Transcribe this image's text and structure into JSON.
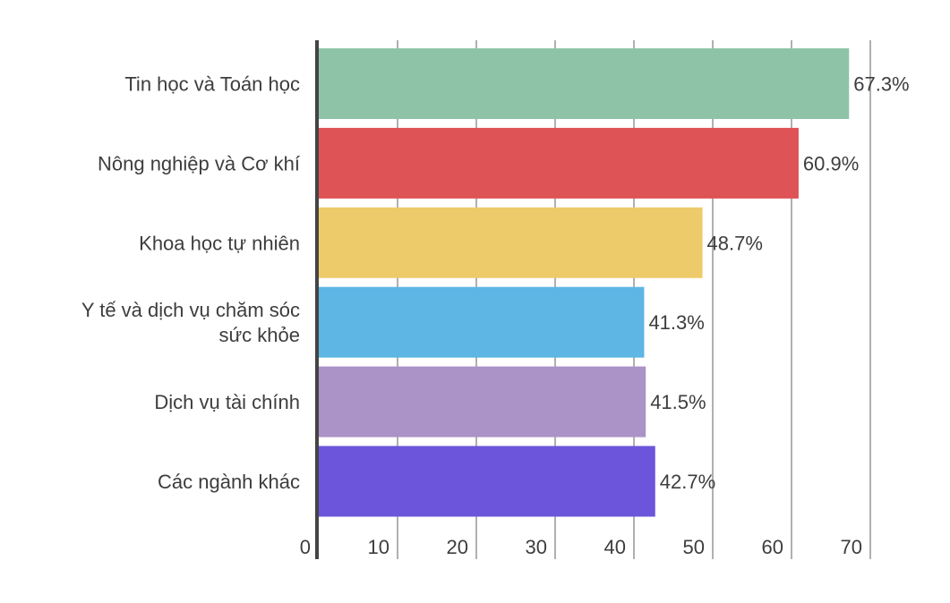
{
  "chart_data": {
    "type": "bar",
    "orientation": "horizontal",
    "categories": [
      "Tin học và Toán học",
      "Nông nghiệp và Cơ khí",
      "Khoa học tự nhiên",
      "Y tế và dịch vụ chăm sóc sức khỏe",
      "Dịch vụ tài chính",
      "Các ngành khác"
    ],
    "category_lines": [
      [
        "Tin học và Toán học"
      ],
      [
        "Nông nghiệp và Cơ khí"
      ],
      [
        "Khoa học tự nhiên"
      ],
      [
        "Y tế và dịch vụ chăm sóc",
        "sức khỏe"
      ],
      [
        "Dịch vụ tài chính"
      ],
      [
        "Các ngành khác"
      ]
    ],
    "values": [
      67.3,
      60.9,
      48.7,
      41.3,
      41.5,
      42.7
    ],
    "data_labels": [
      "67.3%",
      "60.9%",
      "48.7%",
      "41.3%",
      "41.5%",
      "42.7%"
    ],
    "colors": [
      "#8fc3a7",
      "#de5355",
      "#eecb6a",
      "#5db6e4",
      "#ab92c7",
      "#6c55db"
    ],
    "x_ticks": [
      "0",
      "10",
      "20",
      "30",
      "40",
      "50",
      "60",
      "70"
    ],
    "xlim": [
      0,
      70
    ],
    "grid": true,
    "title": "",
    "xlabel": "",
    "ylabel": ""
  }
}
